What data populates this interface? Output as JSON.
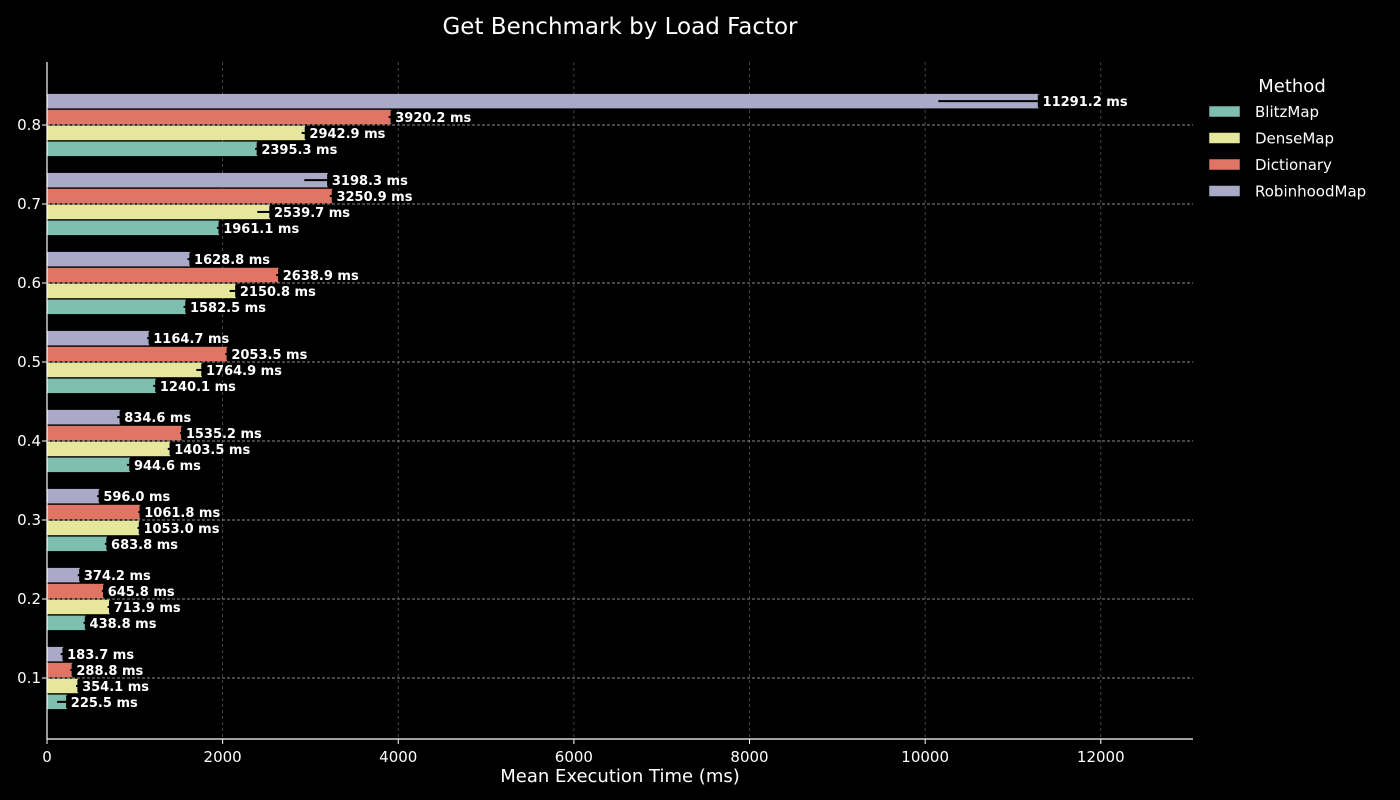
{
  "chart_data": {
    "type": "bar",
    "orientation": "horizontal",
    "title": "Get Benchmark by Load Factor",
    "xlabel": "Mean Execution Time (ms)",
    "ylabel": "",
    "xlim": [
      0,
      13050
    ],
    "xticks": [
      0,
      2000,
      4000,
      6000,
      8000,
      10000,
      12000
    ],
    "categories": [
      "0.1",
      "0.2",
      "0.3",
      "0.4",
      "0.5",
      "0.6",
      "0.7",
      "0.8"
    ],
    "value_suffix": " ms",
    "grid": true,
    "legend": {
      "title": "Method",
      "position": "outside-right"
    },
    "series": [
      {
        "name": "BlitzMap",
        "color": "#7fbfb0",
        "values": [
          225.5,
          438.8,
          683.8,
          944.6,
          1240.1,
          1582.5,
          1961.1,
          2395.3
        ],
        "error_low": [
          115,
          415,
          660,
          910,
          1210,
          1555,
          1935,
          2370
        ]
      },
      {
        "name": "DenseMap",
        "color": "#e6e69c",
        "values": [
          354.1,
          713.9,
          1053.0,
          1403.5,
          1764.9,
          2150.8,
          2539.7,
          2942.9
        ],
        "error_low": [
          330,
          690,
          1030,
          1375,
          1700,
          2080,
          2395,
          2900
        ]
      },
      {
        "name": "Dictionary",
        "color": "#e07565",
        "values": [
          288.8,
          645.8,
          1061.8,
          1535.2,
          2053.5,
          2638.9,
          3250.9,
          3920.2
        ],
        "error_low": [
          265,
          625,
          1040,
          1515,
          2030,
          2610,
          3220,
          3890
        ]
      },
      {
        "name": "RobinhoodMap",
        "color": "#aaaac8",
        "values": [
          183.7,
          374.2,
          596.0,
          834.6,
          1164.7,
          1628.8,
          3198.3,
          11291.2
        ],
        "error_low": [
          155,
          350,
          570,
          800,
          1140,
          1600,
          2930,
          10150
        ]
      }
    ]
  }
}
